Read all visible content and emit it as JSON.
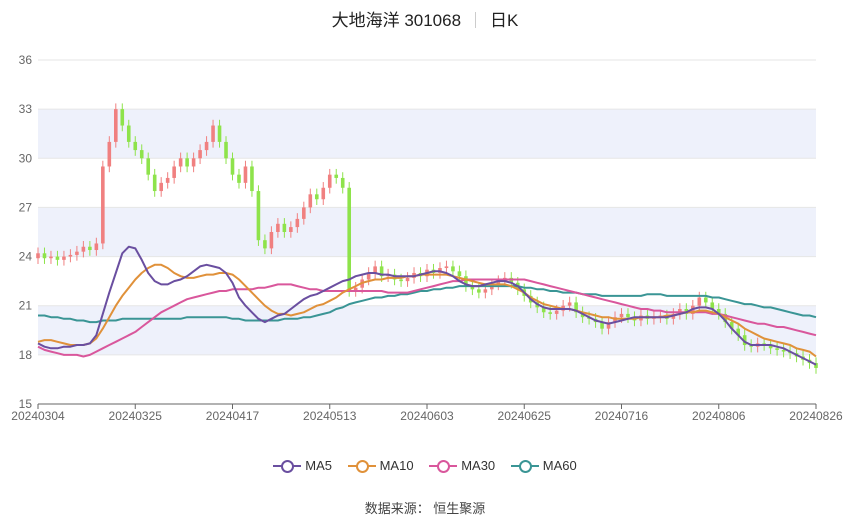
{
  "title": {
    "name": "大地海洋 301068",
    "period": "日K"
  },
  "source": "数据来源： 恒生聚源",
  "colors": {
    "up": "#f08080",
    "down": "#8ee34b",
    "ma5": "#6a4fa0",
    "ma10": "#e0913a",
    "ma30": "#d9579c",
    "ma60": "#3a9595",
    "band": "#eef1fb",
    "grid": "#e6e6e6"
  },
  "chart_data": {
    "type": "candlestick",
    "ylim": [
      15,
      36
    ],
    "yticks": [
      15,
      18,
      21,
      24,
      27,
      30,
      33,
      36
    ],
    "xtick_labels": [
      "20240304",
      "20240325",
      "20240417",
      "20240513",
      "20240603",
      "20240625",
      "20240716",
      "20240806",
      "20240826"
    ],
    "xtick_index": [
      0,
      15,
      30,
      45,
      60,
      75,
      90,
      105,
      120
    ],
    "legend": [
      "MA5",
      "MA10",
      "MA30",
      "MA60"
    ],
    "close": [
      24.2,
      23.9,
      24.0,
      23.8,
      24.0,
      24.1,
      24.3,
      24.6,
      24.4,
      24.8,
      29.5,
      31.0,
      33.0,
      32.0,
      31.0,
      30.5,
      30.0,
      29.0,
      28.0,
      28.5,
      28.8,
      29.5,
      30.0,
      29.5,
      30.0,
      30.5,
      31.0,
      32.0,
      31.0,
      30.0,
      29.0,
      28.5,
      29.5,
      28.0,
      25.0,
      24.5,
      25.5,
      26.0,
      25.5,
      25.8,
      26.3,
      27.0,
      27.8,
      27.5,
      28.2,
      29.0,
      28.8,
      28.2,
      21.9,
      22.1,
      22.6,
      23.0,
      23.4,
      22.8,
      22.9,
      22.6,
      22.5,
      22.7,
      23.0,
      22.8,
      23.2,
      23.0,
      23.3,
      23.4,
      23.1,
      22.8,
      22.2,
      22.0,
      21.8,
      22.0,
      22.3,
      22.5,
      22.7,
      22.4,
      22.0,
      21.6,
      21.2,
      20.9,
      20.6,
      20.5,
      20.7,
      21.0,
      21.2,
      20.6,
      20.3,
      20.2,
      20.0,
      19.6,
      20.0,
      20.3,
      20.5,
      20.3,
      20.1,
      20.4,
      20.2,
      20.3,
      20.4,
      20.2,
      20.5,
      20.8,
      20.5,
      21.0,
      21.5,
      21.2,
      20.8,
      20.5,
      20.0,
      19.6,
      19.2,
      18.6,
      18.5,
      18.7,
      18.6,
      18.4,
      18.3,
      18.2,
      18.1,
      17.9,
      17.7,
      17.5,
      17.2
    ],
    "ma5": [
      18.7,
      18.5,
      18.4,
      18.4,
      18.5,
      18.5,
      18.6,
      18.6,
      18.7,
      19.2,
      20.5,
      21.8,
      23.0,
      24.2,
      24.6,
      24.5,
      23.8,
      23.0,
      22.5,
      22.3,
      22.3,
      22.5,
      22.6,
      22.8,
      23.1,
      23.4,
      23.5,
      23.4,
      23.3,
      23.0,
      22.4,
      21.5,
      21.0,
      20.6,
      20.2,
      20.0,
      20.2,
      20.4,
      20.5,
      20.8,
      21.1,
      21.4,
      21.6,
      21.7,
      21.9,
      22.1,
      22.3,
      22.5,
      22.6,
      22.8,
      22.9,
      23.0,
      23.0,
      22.9,
      22.9,
      22.8,
      22.8,
      22.8,
      22.8,
      22.9,
      23.0,
      23.1,
      23.1,
      23.0,
      22.8,
      22.5,
      22.3,
      22.2,
      22.2,
      22.3,
      22.4,
      22.5,
      22.5,
      22.4,
      22.2,
      21.8,
      21.4,
      21.1,
      20.9,
      20.8,
      20.8,
      20.8,
      20.8,
      20.7,
      20.5,
      20.3,
      20.1,
      20.0,
      19.9,
      20.0,
      20.1,
      20.2,
      20.3,
      20.3,
      20.3,
      20.3,
      20.3,
      20.3,
      20.4,
      20.5,
      20.6,
      20.8,
      20.9,
      20.9,
      20.8,
      20.5,
      20.1,
      19.6,
      19.2,
      18.8,
      18.6,
      18.6,
      18.6,
      18.6,
      18.5,
      18.4,
      18.2,
      18.0,
      17.8,
      17.6,
      17.4
    ],
    "ma10": [
      18.8,
      18.9,
      18.9,
      18.8,
      18.7,
      18.6,
      18.6,
      18.6,
      18.7,
      19.0,
      19.6,
      20.3,
      21.0,
      21.6,
      22.1,
      22.6,
      23.0,
      23.3,
      23.5,
      23.5,
      23.3,
      23.0,
      22.8,
      22.7,
      22.7,
      22.8,
      22.9,
      22.9,
      23.0,
      23.0,
      22.9,
      22.6,
      22.2,
      21.8,
      21.4,
      21.0,
      20.7,
      20.5,
      20.5,
      20.4,
      20.5,
      20.6,
      20.8,
      21.0,
      21.1,
      21.3,
      21.5,
      21.8,
      22.0,
      22.2,
      22.4,
      22.5,
      22.6,
      22.6,
      22.7,
      22.7,
      22.7,
      22.8,
      22.8,
      22.9,
      22.9,
      22.9,
      22.9,
      22.9,
      22.8,
      22.7,
      22.6,
      22.5,
      22.4,
      22.3,
      22.3,
      22.3,
      22.3,
      22.2,
      22.0,
      21.8,
      21.5,
      21.3,
      21.1,
      21.0,
      20.9,
      20.8,
      20.8,
      20.7,
      20.6,
      20.5,
      20.4,
      20.3,
      20.3,
      20.2,
      20.2,
      20.2,
      20.2,
      20.3,
      20.3,
      20.3,
      20.3,
      20.4,
      20.4,
      20.5,
      20.6,
      20.6,
      20.7,
      20.7,
      20.6,
      20.5,
      20.3,
      20.1,
      19.9,
      19.6,
      19.4,
      19.2,
      19.0,
      18.9,
      18.8,
      18.7,
      18.6,
      18.4,
      18.3,
      18.2,
      17.9
    ],
    "ma30": [
      18.5,
      18.3,
      18.2,
      18.1,
      18.0,
      18.0,
      18.0,
      17.9,
      18.0,
      18.2,
      18.4,
      18.6,
      18.8,
      19.0,
      19.2,
      19.4,
      19.7,
      20.0,
      20.3,
      20.6,
      20.8,
      21.0,
      21.2,
      21.4,
      21.5,
      21.6,
      21.7,
      21.8,
      21.9,
      21.9,
      22.0,
      22.0,
      22.0,
      22.0,
      22.1,
      22.1,
      22.2,
      22.3,
      22.3,
      22.3,
      22.2,
      22.1,
      22.0,
      22.0,
      21.9,
      21.9,
      21.9,
      21.9,
      21.9,
      21.9,
      21.9,
      21.9,
      21.9,
      21.9,
      21.8,
      21.8,
      21.8,
      21.8,
      21.9,
      22.0,
      22.1,
      22.2,
      22.3,
      22.4,
      22.5,
      22.5,
      22.6,
      22.6,
      22.6,
      22.6,
      22.6,
      22.6,
      22.6,
      22.6,
      22.6,
      22.6,
      22.5,
      22.4,
      22.3,
      22.2,
      22.1,
      22.0,
      21.9,
      21.8,
      21.7,
      21.6,
      21.5,
      21.4,
      21.3,
      21.2,
      21.1,
      21.0,
      20.9,
      20.8,
      20.8,
      20.7,
      20.7,
      20.6,
      20.6,
      20.6,
      20.6,
      20.6,
      20.6,
      20.6,
      20.5,
      20.5,
      20.4,
      20.3,
      20.2,
      20.1,
      20.0,
      19.9,
      19.9,
      19.8,
      19.7,
      19.7,
      19.6,
      19.5,
      19.4,
      19.3,
      19.2
    ],
    "ma60": [
      20.4,
      20.4,
      20.3,
      20.3,
      20.2,
      20.2,
      20.1,
      20.1,
      20.0,
      20.0,
      20.1,
      20.1,
      20.1,
      20.2,
      20.2,
      20.2,
      20.2,
      20.2,
      20.2,
      20.2,
      20.2,
      20.2,
      20.2,
      20.3,
      20.3,
      20.3,
      20.3,
      20.3,
      20.3,
      20.3,
      20.2,
      20.2,
      20.1,
      20.1,
      20.1,
      20.1,
      20.1,
      20.1,
      20.2,
      20.2,
      20.2,
      20.3,
      20.3,
      20.4,
      20.5,
      20.6,
      20.8,
      20.9,
      21.1,
      21.2,
      21.3,
      21.4,
      21.5,
      21.5,
      21.6,
      21.6,
      21.7,
      21.7,
      21.8,
      21.9,
      21.9,
      22.0,
      22.0,
      22.1,
      22.1,
      22.2,
      22.2,
      22.2,
      22.2,
      22.2,
      22.2,
      22.2,
      22.2,
      22.2,
      22.2,
      22.1,
      22.1,
      22.0,
      22.0,
      21.9,
      21.9,
      21.8,
      21.8,
      21.8,
      21.7,
      21.7,
      21.7,
      21.6,
      21.6,
      21.6,
      21.6,
      21.6,
      21.6,
      21.6,
      21.7,
      21.7,
      21.7,
      21.6,
      21.6,
      21.6,
      21.6,
      21.6,
      21.6,
      21.6,
      21.5,
      21.5,
      21.4,
      21.3,
      21.2,
      21.1,
      21.1,
      21.0,
      20.9,
      20.9,
      20.8,
      20.7,
      20.6,
      20.5,
      20.4,
      20.4,
      20.3
    ]
  }
}
